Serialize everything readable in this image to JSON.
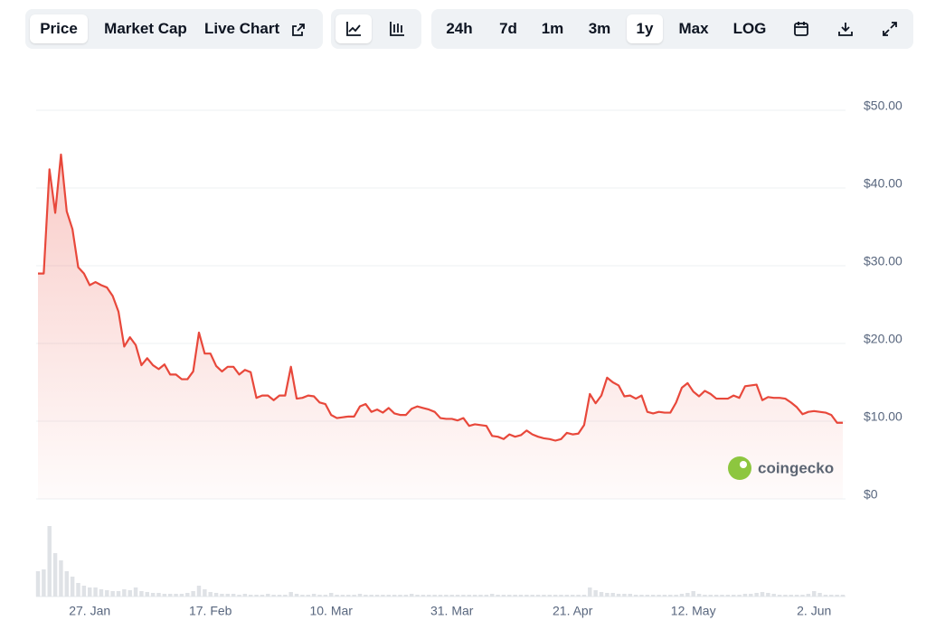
{
  "toolbar": {
    "tabs": [
      "Price",
      "Market Cap",
      "Live Chart"
    ],
    "ranges": [
      "24h",
      "7d",
      "1m",
      "3m",
      "1y",
      "Max",
      "LOG"
    ]
  },
  "watermark": "coingecko",
  "chart_data": [
    {
      "type": "line",
      "color": "#e8483b",
      "categories": [
        null,
        null,
        null,
        null,
        null,
        null,
        null,
        null,
        null,
        "27. Jan",
        null,
        null,
        null,
        null,
        null,
        null,
        null,
        null,
        null,
        null,
        null,
        null,
        null,
        null,
        null,
        null,
        null,
        null,
        null,
        null,
        "17. Feb",
        null,
        null,
        null,
        null,
        null,
        null,
        null,
        null,
        null,
        null,
        null,
        null,
        null,
        null,
        null,
        null,
        null,
        null,
        null,
        null,
        "10. Mar",
        null,
        null,
        null,
        null,
        null,
        null,
        null,
        null,
        null,
        null,
        null,
        null,
        null,
        null,
        null,
        null,
        null,
        null,
        null,
        null,
        "31. Mar",
        null,
        null,
        null,
        null,
        null,
        null,
        null,
        null,
        null,
        null,
        null,
        null,
        null,
        null,
        null,
        null,
        null,
        null,
        null,
        null,
        "21. Apr",
        null,
        null,
        null,
        null,
        null,
        null,
        null,
        null,
        null,
        null,
        null,
        null,
        null,
        null,
        null,
        null,
        null,
        null,
        null,
        null,
        "12. May",
        null,
        null,
        null,
        null,
        null,
        null,
        null,
        null,
        null,
        null,
        null,
        null,
        null,
        null,
        null,
        null,
        null,
        null,
        null,
        null,
        "2. Jun",
        null,
        null,
        null,
        null,
        null
      ],
      "values": [
        29.0,
        29.0,
        42.4,
        36.8,
        44.3,
        37.0,
        34.7,
        29.8,
        29.0,
        27.5,
        27.9,
        27.5,
        27.2,
        26.1,
        24.1,
        19.6,
        20.8,
        19.8,
        17.2,
        18.1,
        17.2,
        16.7,
        17.3,
        16.0,
        16.0,
        15.4,
        15.4,
        16.4,
        21.4,
        18.7,
        18.7,
        17.1,
        16.4,
        17.0,
        17.0,
        16.0,
        16.6,
        16.3,
        13.0,
        13.3,
        13.3,
        12.7,
        13.3,
        13.3,
        17.0,
        12.9,
        13.0,
        13.3,
        13.2,
        12.4,
        12.2,
        10.8,
        10.4,
        10.5,
        10.6,
        10.6,
        11.9,
        12.2,
        11.2,
        11.5,
        11.1,
        11.7,
        11.0,
        10.8,
        10.8,
        11.6,
        11.9,
        11.7,
        11.5,
        11.2,
        10.4,
        10.3,
        10.3,
        10.1,
        10.4,
        9.4,
        9.6,
        9.5,
        9.4,
        8.1,
        8.0,
        7.7,
        8.3,
        8.0,
        8.2,
        8.8,
        8.3,
        8.0,
        7.8,
        7.7,
        7.5,
        7.7,
        8.5,
        8.3,
        8.4,
        9.5,
        13.5,
        12.3,
        13.3,
        15.6,
        15.0,
        14.6,
        13.2,
        13.3,
        12.9,
        13.3,
        11.2,
        11.0,
        11.2,
        11.1,
        11.1,
        12.4,
        14.3,
        14.9,
        13.8,
        13.2,
        13.9,
        13.5,
        12.9,
        12.9,
        12.9,
        13.3,
        13.0,
        14.5,
        14.6,
        14.7,
        12.7,
        13.1,
        13.0,
        13.0,
        12.9,
        12.4,
        11.8,
        10.9,
        11.2,
        11.3,
        11.2,
        11.1,
        10.8,
        9.8,
        9.8
      ],
      "ylim": [
        0,
        50
      ],
      "yticks": [
        {
          "value": 50,
          "label": "$50.00"
        },
        {
          "value": 40,
          "label": "$40.00"
        },
        {
          "value": 30,
          "label": "$30.00"
        },
        {
          "value": 20,
          "label": "$20.00"
        },
        {
          "value": 10,
          "label": "$10.00"
        },
        {
          "value": 0,
          "label": "$0"
        }
      ],
      "grid": true
    },
    {
      "type": "bar",
      "color": "#dfe2e6",
      "values": [
        28,
        30,
        78,
        48,
        40,
        28,
        22,
        15,
        12,
        10,
        10,
        8,
        7,
        6,
        6,
        8,
        7,
        10,
        6,
        5,
        4,
        4,
        3,
        3,
        3,
        3,
        4,
        6,
        12,
        8,
        5,
        4,
        3,
        3,
        3,
        2,
        3,
        2,
        2,
        2,
        3,
        2,
        2,
        2,
        5,
        3,
        2,
        2,
        3,
        2,
        2,
        4,
        2,
        2,
        2,
        2,
        3,
        2,
        2,
        2,
        2,
        2,
        2,
        2,
        2,
        3,
        2,
        2,
        2,
        2,
        2,
        2,
        2,
        2,
        2,
        2,
        2,
        2,
        2,
        3,
        2,
        2,
        2,
        2,
        2,
        2,
        2,
        2,
        2,
        2,
        2,
        2,
        2,
        2,
        2,
        2,
        10,
        7,
        5,
        4,
        4,
        3,
        3,
        3,
        2,
        2,
        2,
        2,
        2,
        2,
        2,
        2,
        3,
        4,
        6,
        3,
        2,
        2,
        2,
        2,
        2,
        2,
        2,
        3,
        3,
        4,
        5,
        4,
        3,
        2,
        2,
        2,
        2,
        2,
        3,
        6,
        4,
        2,
        2,
        2,
        2
      ],
      "ylim": [
        0,
        85
      ]
    }
  ]
}
